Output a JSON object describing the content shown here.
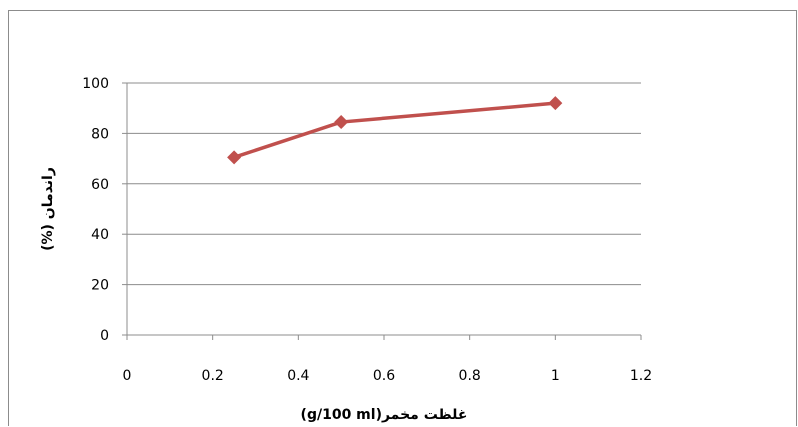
{
  "chart_data": {
    "type": "line",
    "title": "",
    "xlabel": "غلظت مخمر(g/100 ml)",
    "ylabel": "راندمان (%)",
    "xlim": [
      0,
      1.2
    ],
    "ylim": [
      0,
      100
    ],
    "x_ticks": [
      "0",
      "0.2",
      "0.4",
      "0.6",
      "0.8",
      "1",
      "1.2"
    ],
    "y_ticks": [
      "0",
      "20",
      "40",
      "60",
      "80",
      "100"
    ],
    "grid": "horizontal",
    "legend": "none",
    "series": [
      {
        "x": [
          0.25,
          0.5,
          1.0
        ],
        "y": [
          70.5,
          84.5,
          92
        ],
        "color": "#c0504d",
        "marker": "diamond"
      }
    ]
  }
}
